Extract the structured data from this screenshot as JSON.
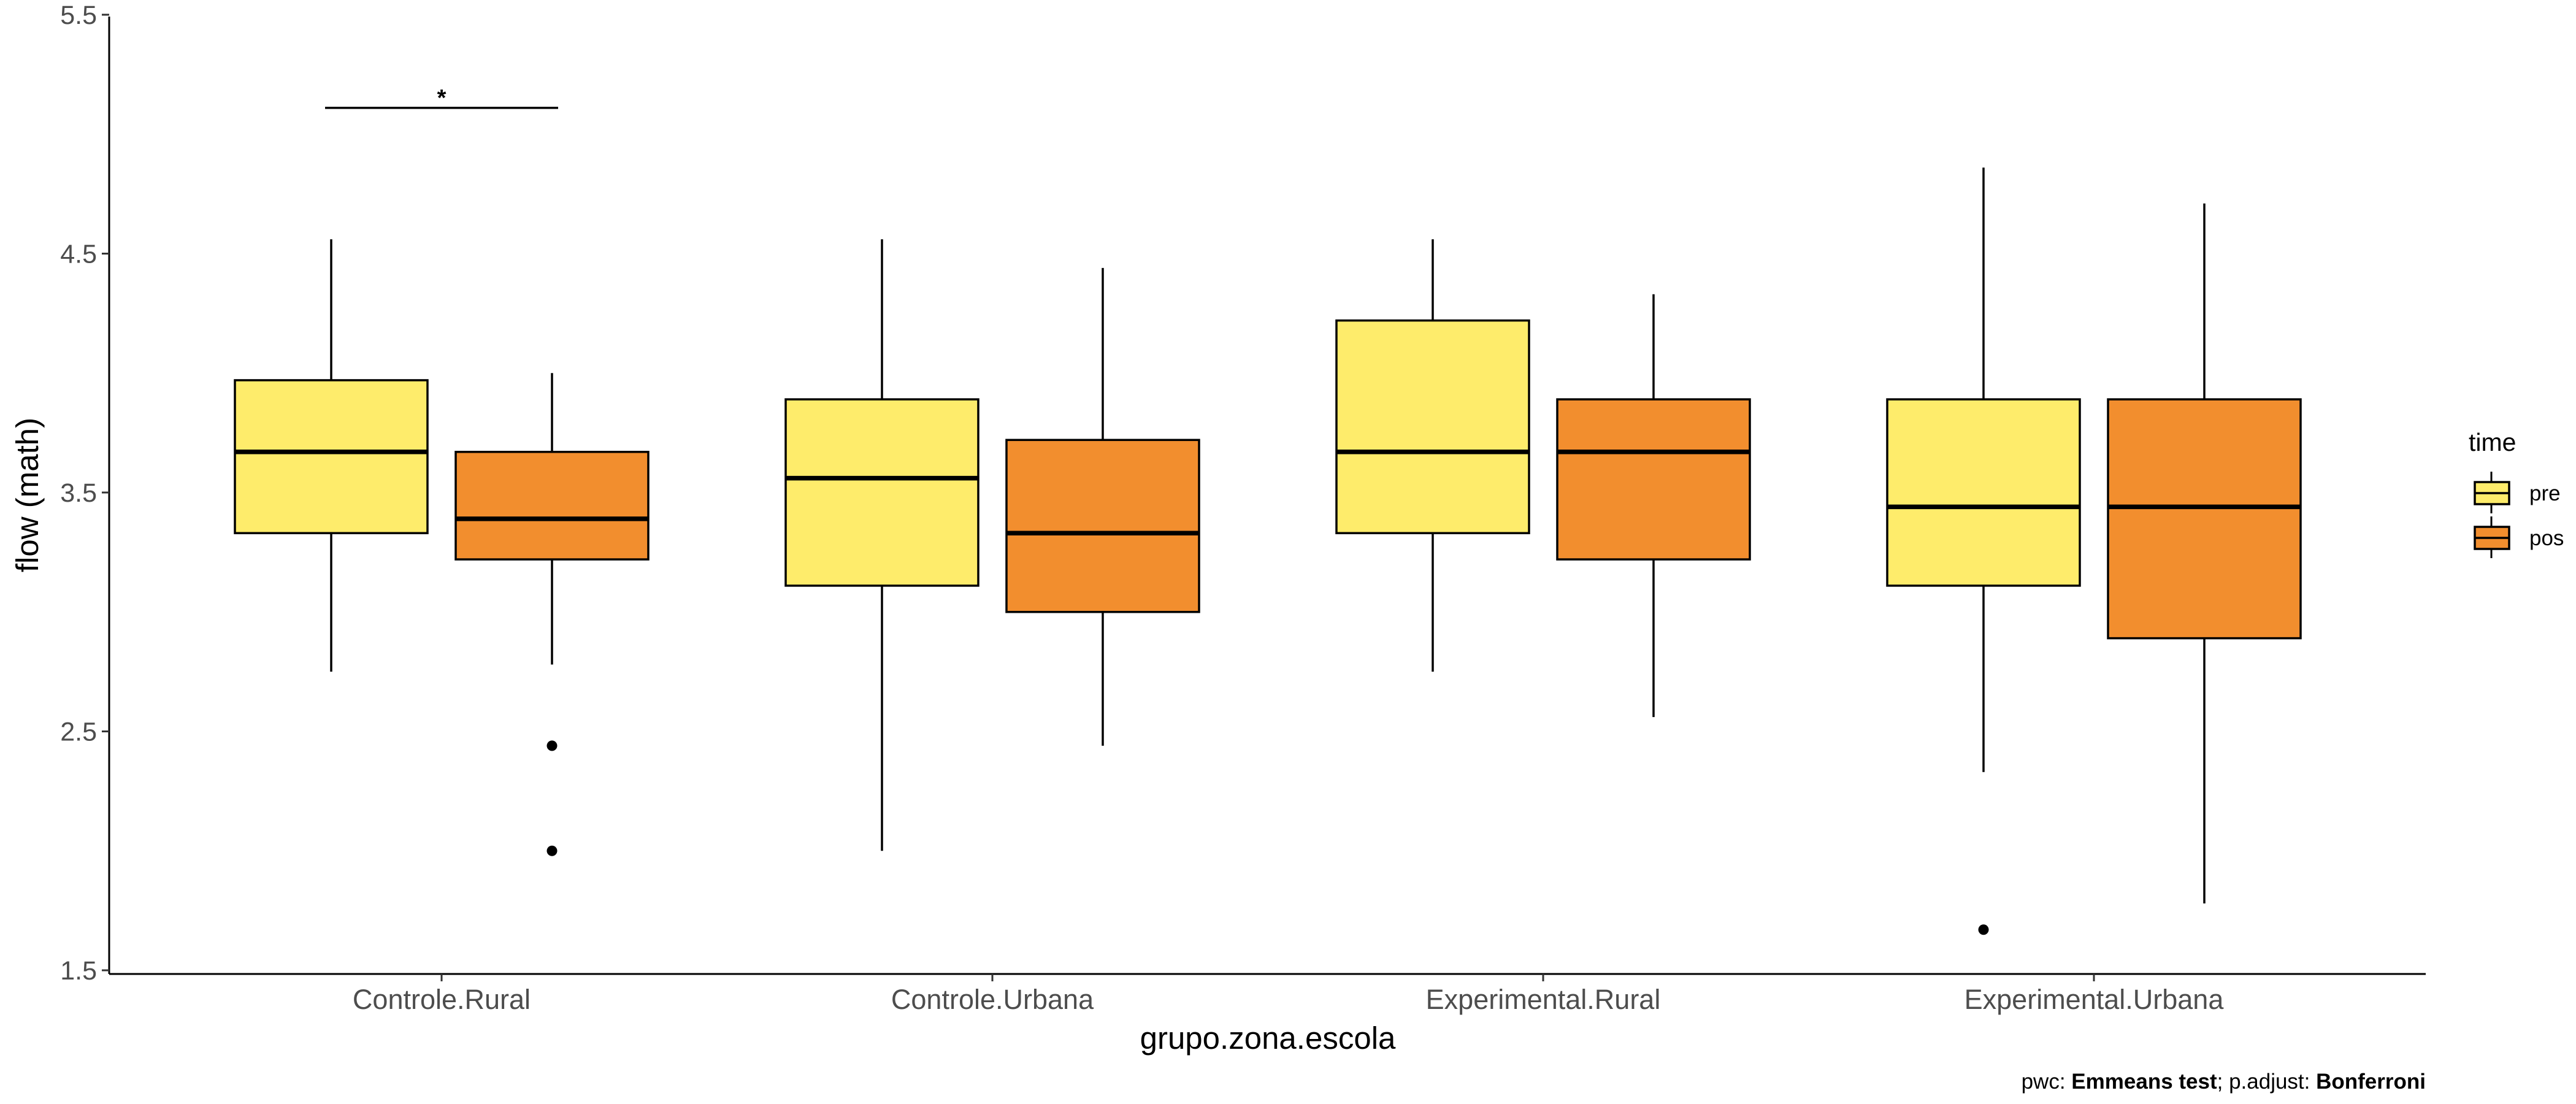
{
  "chart_data": {
    "type": "box",
    "xlabel": "grupo.zona.escola",
    "ylabel": "flow (math)",
    "ylim": [
      1.5,
      5.5
    ],
    "yticks": [
      1.5,
      2.5,
      3.5,
      4.5,
      5.5
    ],
    "ytick_labels": [
      "1.5",
      "2.5",
      "3.5",
      "4.5",
      "5.5"
    ],
    "categories": [
      "Controle.Rural",
      "Controle.Urbana",
      "Experimental.Rural",
      "Experimental.Urbana"
    ],
    "legend": {
      "title": "time",
      "position": "right",
      "entries": [
        {
          "name": "pre",
          "color": "#FEEC6B"
        },
        {
          "name": "pos",
          "color": "#F28E2E"
        }
      ]
    },
    "series": [
      {
        "name": "pre",
        "color": "#FEEC6B",
        "boxes": [
          {
            "category": "Controle.Rural",
            "whisker_low": 2.75,
            "q1": 3.33,
            "median": 3.67,
            "q3": 3.97,
            "whisker_high": 4.56,
            "outliers": []
          },
          {
            "category": "Controle.Urbana",
            "whisker_low": 2.0,
            "q1": 3.11,
            "median": 3.56,
            "q3": 3.89,
            "whisker_high": 4.56,
            "outliers": []
          },
          {
            "category": "Experimental.Rural",
            "whisker_low": 2.75,
            "q1": 3.33,
            "median": 3.67,
            "q3": 4.22,
            "whisker_high": 4.56,
            "outliers": []
          },
          {
            "category": "Experimental.Urbana",
            "whisker_low": 2.33,
            "q1": 3.11,
            "median": 3.44,
            "q3": 3.89,
            "whisker_high": 4.86,
            "outliers": [
              1.67
            ]
          }
        ]
      },
      {
        "name": "pos",
        "color": "#F28E2E",
        "boxes": [
          {
            "category": "Controle.Rural",
            "whisker_low": 2.78,
            "q1": 3.22,
            "median": 3.39,
            "q3": 3.67,
            "whisker_high": 4.0,
            "outliers": [
              2.44,
              2.0
            ]
          },
          {
            "category": "Controle.Urbana",
            "whisker_low": 2.44,
            "q1": 3.0,
            "median": 3.33,
            "q3": 3.72,
            "whisker_high": 4.44,
            "outliers": []
          },
          {
            "category": "Experimental.Rural",
            "whisker_low": 2.56,
            "q1": 3.22,
            "median": 3.67,
            "q3": 3.89,
            "whisker_high": 4.33,
            "outliers": []
          },
          {
            "category": "Experimental.Urbana",
            "whisker_low": 1.78,
            "q1": 2.89,
            "median": 3.44,
            "q3": 3.89,
            "whisker_high": 4.71,
            "outliers": []
          }
        ]
      }
    ],
    "annotations": [
      {
        "category": "Controle.Rural",
        "label": "*",
        "y": 5.11
      }
    ],
    "caption": {
      "prefix": "pwc: ",
      "test": "Emmeans test",
      "middle": "; p.adjust: ",
      "method": "Bonferroni"
    }
  }
}
